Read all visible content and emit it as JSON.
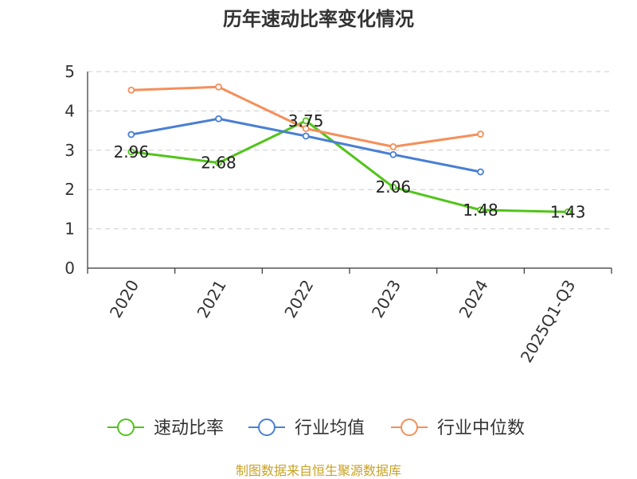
{
  "chart_data": {
    "type": "line",
    "title": "历年速动比率变化情况",
    "categories": [
      "2020",
      "2021",
      "2022",
      "2023",
      "2024",
      "2025Q1-Q3"
    ],
    "ylim": [
      0,
      5
    ],
    "yticks": [
      "0",
      "1",
      "2",
      "3",
      "4",
      "5"
    ],
    "grid": true,
    "legend_position": "bottom",
    "series": [
      {
        "name": "速动比率",
        "color": "#52c41a",
        "values": [
          2.96,
          2.68,
          3.75,
          2.06,
          1.48,
          1.43
        ],
        "labels": [
          "2.96",
          "2.68",
          "3.75",
          "2.06",
          "1.48",
          "1.43"
        ]
      },
      {
        "name": "行业均值",
        "color": "#4a7fd4",
        "values": [
          3.4,
          3.8,
          3.36,
          2.89,
          2.45,
          null
        ]
      },
      {
        "name": "行业中位数",
        "color": "#f58f5a",
        "values": [
          4.53,
          4.61,
          3.55,
          3.09,
          3.41,
          null
        ]
      }
    ]
  },
  "source": "制图数据来自恒生聚源数据库"
}
